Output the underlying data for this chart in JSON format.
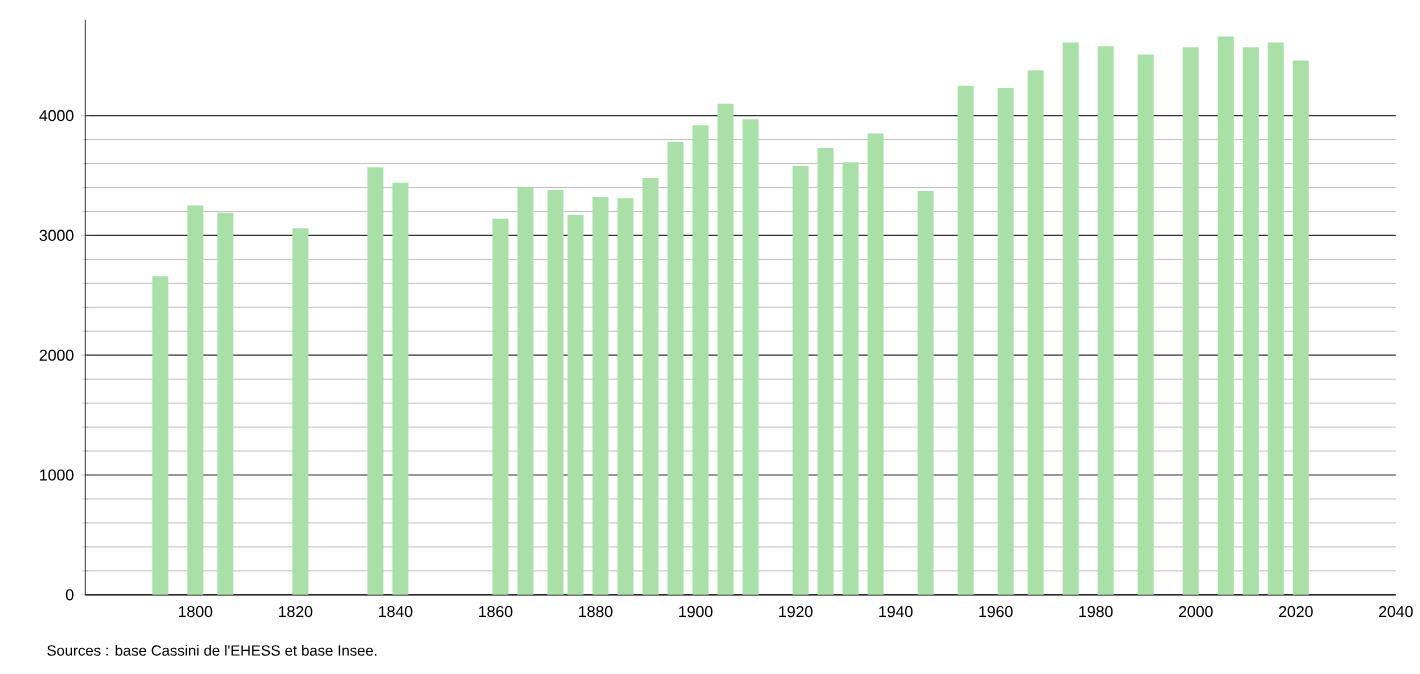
{
  "chart_data": {
    "type": "bar",
    "color": "#a8e0a8",
    "x": [
      1793,
      1800,
      1806,
      1821,
      1836,
      1841,
      1861,
      1866,
      1872,
      1876,
      1881,
      1886,
      1891,
      1896,
      1901,
      1906,
      1911,
      1921,
      1926,
      1931,
      1936,
      1946,
      1954,
      1962,
      1968,
      1975,
      1982,
      1990,
      1999,
      2006,
      2011,
      2016,
      2021
    ],
    "values": [
      2660,
      3250,
      3190,
      3060,
      3570,
      3440,
      3140,
      3400,
      3380,
      3170,
      3320,
      3310,
      3480,
      3780,
      3920,
      4100,
      3970,
      3580,
      3730,
      3610,
      3850,
      3370,
      4250,
      4230,
      4380,
      4610,
      4580,
      4510,
      4570,
      4660,
      4570,
      4610,
      4460
    ],
    "xlim": [
      1778,
      2040
    ],
    "xticks": [
      1800,
      1820,
      1840,
      1860,
      1880,
      1900,
      1920,
      1940,
      1960,
      1980,
      2000,
      2020,
      2040
    ],
    "ylim": [
      0,
      4800
    ],
    "yticks": [
      0,
      1000,
      2000,
      3000,
      4000
    ],
    "grid": "y",
    "annotations": [
      "Sources : base Cassini de l'EHESS et base Insee."
    ]
  }
}
